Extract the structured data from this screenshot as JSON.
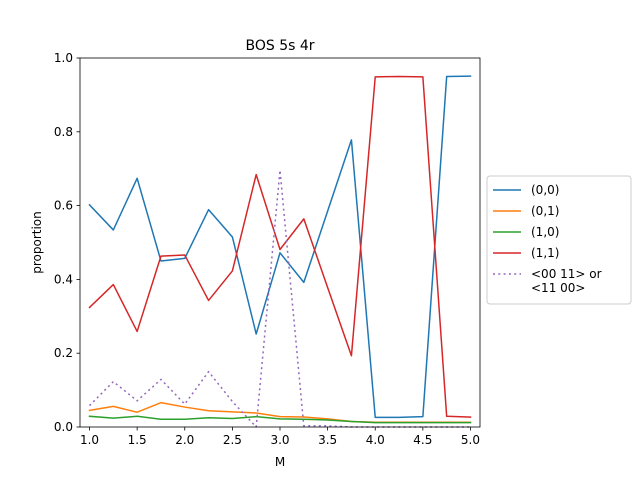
{
  "chart_data": {
    "type": "line",
    "title": "BOS 5s 4r",
    "xlabel": "M",
    "ylabel": "proportion",
    "xlim": [
      0.9,
      5.1
    ],
    "ylim": [
      0.0,
      1.0
    ],
    "x_ticks": [
      1.0,
      1.5,
      2.0,
      2.5,
      3.0,
      3.5,
      4.0,
      4.5,
      5.0
    ],
    "x_tick_labels": [
      "1.0",
      "1.5",
      "2.0",
      "2.5",
      "3.0",
      "3.5",
      "4.0",
      "4.5",
      "5.0"
    ],
    "y_ticks": [
      0.0,
      0.2,
      0.4,
      0.6,
      0.8,
      1.0
    ],
    "y_tick_labels": [
      "0.0",
      "0.2",
      "0.4",
      "0.6",
      "0.8",
      "1.0"
    ],
    "grid": false,
    "legend_position": "right, outside plot",
    "x": [
      1.0,
      1.25,
      1.5,
      1.75,
      2.0,
      2.25,
      2.5,
      2.75,
      3.0,
      3.25,
      3.5,
      3.75,
      4.0,
      4.25,
      4.5,
      4.75,
      5.0
    ],
    "series": [
      {
        "name": "(0,0)",
        "color": "#1f77b4",
        "dash": "solid",
        "values": [
          0.602,
          0.534,
          0.674,
          0.45,
          0.457,
          0.589,
          0.515,
          0.252,
          0.472,
          0.392,
          0.585,
          0.778,
          0.026,
          0.026,
          0.028,
          0.95,
          0.951
        ]
      },
      {
        "name": "(0,1)",
        "color": "#ff7f0e",
        "dash": "solid",
        "values": [
          0.045,
          0.056,
          0.04,
          0.066,
          0.054,
          0.044,
          0.041,
          0.038,
          0.028,
          0.027,
          0.022,
          0.015,
          0.013,
          0.013,
          0.013,
          0.013,
          0.013
        ]
      },
      {
        "name": "(1,0)",
        "color": "#2ca02c",
        "dash": "solid",
        "values": [
          0.029,
          0.024,
          0.029,
          0.021,
          0.021,
          0.025,
          0.023,
          0.028,
          0.022,
          0.021,
          0.019,
          0.015,
          0.012,
          0.012,
          0.012,
          0.012,
          0.012
        ]
      },
      {
        "name": "(1,1)",
        "color": "#d62728",
        "dash": "solid",
        "values": [
          0.324,
          0.386,
          0.259,
          0.463,
          0.466,
          0.343,
          0.423,
          0.684,
          0.481,
          0.564,
          0.378,
          0.193,
          0.949,
          0.95,
          0.949,
          0.029,
          0.027
        ]
      },
      {
        "name": "<00 11> or\n<11 00>",
        "color": "#9467bd",
        "dash": "dotted",
        "values": [
          0.058,
          0.123,
          0.071,
          0.129,
          0.062,
          0.15,
          0.069,
          0.0,
          0.696,
          0.003,
          0.003,
          0.0,
          0.0,
          0.0,
          0.0,
          0.0,
          0.0
        ]
      }
    ]
  }
}
